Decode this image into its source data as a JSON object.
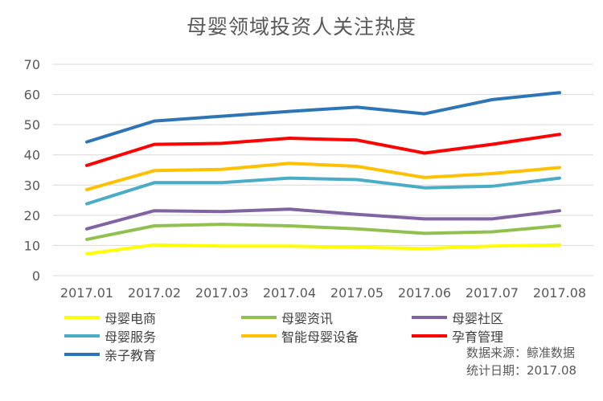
{
  "chart_data": {
    "type": "line",
    "title": "母婴领域投资人关注热度",
    "xlabel": "",
    "ylabel": "",
    "categories": [
      "2017.01",
      "2017.02",
      "2017.03",
      "2017.04",
      "2017.05",
      "2017.06",
      "2017.07",
      "2017.08"
    ],
    "ylim": [
      0,
      70
    ],
    "yticks": [
      0,
      10,
      20,
      30,
      40,
      50,
      60,
      70
    ],
    "grid": true,
    "legend_position": "bottom",
    "series": [
      {
        "name": "母婴电商",
        "color": "#FFFF00",
        "values": [
          7.2,
          10.2,
          9.8,
          9.8,
          9.4,
          9.0,
          9.8,
          10.2
        ]
      },
      {
        "name": "母婴资讯",
        "color": "#92C050",
        "values": [
          12.0,
          16.5,
          17.0,
          16.5,
          15.5,
          14.0,
          14.5,
          16.5
        ]
      },
      {
        "name": "母婴社区",
        "color": "#8064A2",
        "values": [
          15.5,
          21.5,
          21.2,
          22.0,
          20.3,
          18.8,
          18.8,
          21.5
        ]
      },
      {
        "name": "母婴服务",
        "color": "#4BACC6",
        "values": [
          23.8,
          30.8,
          30.8,
          32.3,
          31.8,
          29.1,
          29.6,
          32.3
        ]
      },
      {
        "name": "智能母婴设备",
        "color": "#FFC000",
        "values": [
          28.5,
          34.8,
          35.2,
          37.2,
          36.2,
          32.5,
          33.8,
          35.8
        ]
      },
      {
        "name": "孕育管理",
        "color": "#FF0000",
        "values": [
          36.5,
          43.5,
          43.8,
          45.5,
          44.9,
          40.6,
          43.5,
          46.8
        ]
      },
      {
        "name": "亲子教育",
        "color": "#2E75B6",
        "values": [
          44.3,
          51.2,
          52.8,
          54.4,
          55.8,
          53.6,
          58.3,
          60.6
        ]
      }
    ],
    "annotations": [
      "数据来源：鲸准数据",
      "统计日期：2017.08"
    ]
  }
}
